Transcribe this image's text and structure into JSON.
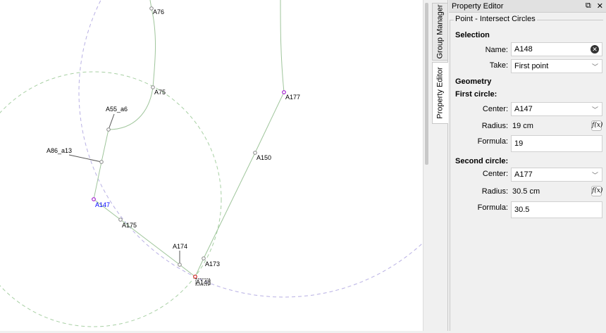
{
  "canvas": {
    "points": [
      {
        "name": "A76",
        "color": "#000"
      },
      {
        "name": "A75",
        "color": "#000"
      },
      {
        "name": "A55_a6",
        "color": "#000"
      },
      {
        "name": "A86_a13",
        "color": "#000"
      },
      {
        "name": "A147",
        "color": "#0000ff"
      },
      {
        "name": "A175",
        "color": "#000"
      },
      {
        "name": "A174",
        "color": "#000"
      },
      {
        "name": "A173",
        "color": "#000"
      },
      {
        "name": "A148",
        "color": "#000"
      },
      {
        "name": "A150",
        "color": "#000"
      },
      {
        "name": "A177",
        "color": "#000"
      }
    ]
  },
  "tabs": {
    "group_manager": "Group Manager",
    "property_editor": "Property Editor"
  },
  "panel": {
    "title": "Property Editor",
    "group_title": "Point - Intersect Circles",
    "selection": {
      "heading": "Selection",
      "name_label": "Name:",
      "name_value": "A148",
      "take_label": "Take:",
      "take_value": "First point"
    },
    "geometry": {
      "heading": "Geometry",
      "first_circle": {
        "heading": "First circle:",
        "center_label": "Center:",
        "center_value": "A147",
        "radius_label": "Radius:",
        "radius_value": "19 cm",
        "formula_label": "Formula:",
        "formula_value": "19"
      },
      "second_circle": {
        "heading": "Second circle:",
        "center_label": "Center:",
        "center_value": "A177",
        "radius_label": "Radius:",
        "radius_value": "30.5 cm",
        "formula_label": "Formula:",
        "formula_value": "30.5"
      }
    },
    "fx_label": "f(x)"
  },
  "colors": {
    "line": "#9fc59b",
    "circle1": "#a8d0a4",
    "circle2": "#b0a8e0",
    "selected_point": "#cc0000",
    "accent_point": "#9900cc"
  }
}
